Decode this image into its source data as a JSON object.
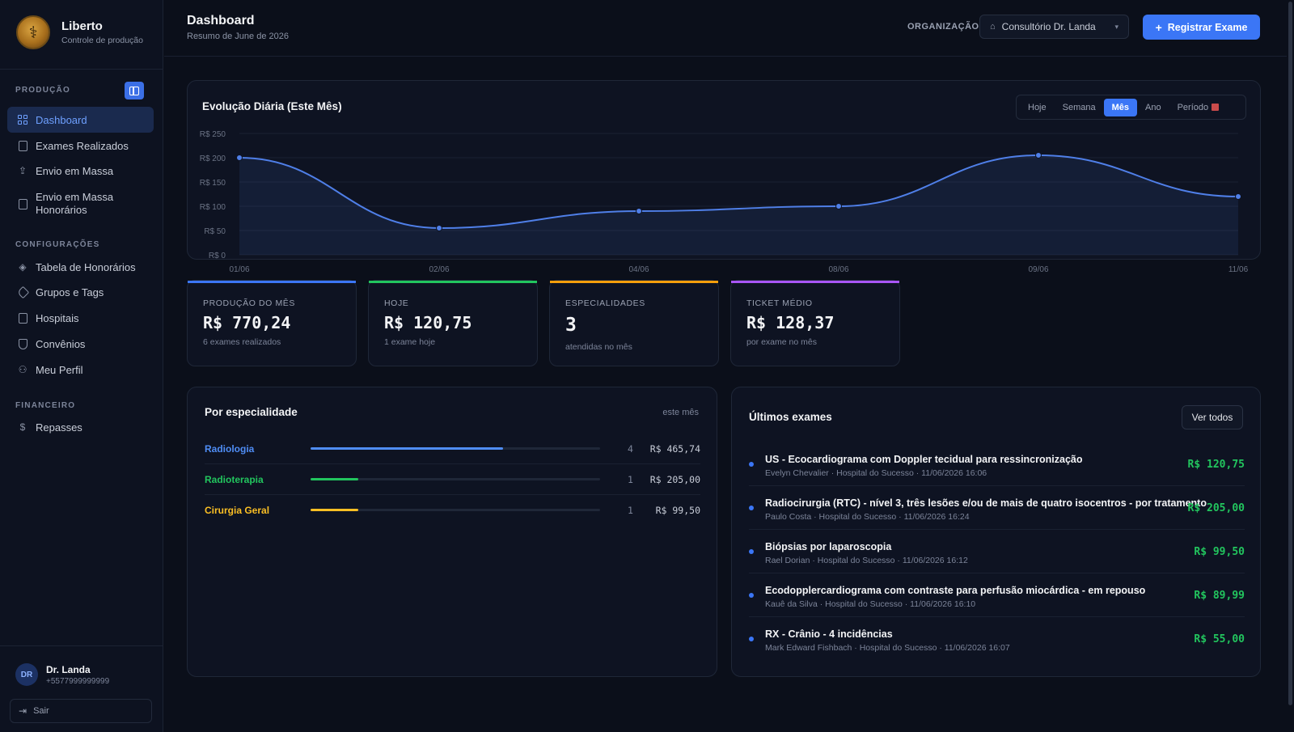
{
  "sidebar": {
    "brand": {
      "name": "Liberto",
      "subtitle": "Controle de produção"
    },
    "sections": [
      {
        "label": "PRODUÇÃO"
      },
      {
        "label": "CONFIGURAÇÕES"
      },
      {
        "label": "FINANCEIRO"
      }
    ],
    "items": [
      {
        "label": "Dashboard",
        "icon": "grid-icon",
        "active": true
      },
      {
        "label": "Exames Realizados",
        "icon": "clipboard-icon"
      },
      {
        "label": "Envio em Massa",
        "icon": "upload-icon"
      },
      {
        "label": "Envio em Massa Honorários",
        "icon": "file-upload-icon"
      },
      {
        "label": "Tabela de Honorários",
        "icon": "layers-icon"
      },
      {
        "label": "Grupos e Tags",
        "icon": "tag-icon"
      },
      {
        "label": "Hospitais",
        "icon": "building-icon"
      },
      {
        "label": "Convênios",
        "icon": "shield-icon"
      },
      {
        "label": "Meu Perfil",
        "icon": "user-icon"
      },
      {
        "label": "Repasses",
        "icon": "dollar-icon"
      }
    ],
    "user": {
      "initials": "DR",
      "name": "Dr. Landa",
      "phone": "+5577999999999"
    },
    "logout_label": "Sair"
  },
  "header": {
    "title": "Dashboard",
    "subtitle": "Resumo de June de 2026",
    "org_label": "ORGANIZAÇÃO:",
    "org_value": "Consultório Dr. Landa",
    "primary_button": "Registrar Exame"
  },
  "chart": {
    "title": "Evolução Diária (Este Mês)",
    "tabs": [
      {
        "label": "Hoje"
      },
      {
        "label": "Semana"
      },
      {
        "label": "Mês",
        "active": true
      },
      {
        "label": "Ano"
      },
      {
        "label": "Período"
      }
    ]
  },
  "chart_data": {
    "type": "area",
    "title": "Evolução Diária (Este Mês)",
    "x": [
      "01/06",
      "02/06",
      "04/06",
      "08/06",
      "09/06",
      "11/06"
    ],
    "y_ticks": [
      "R$ 250",
      "R$ 200",
      "R$ 150",
      "R$ 100",
      "R$ 50",
      "R$ 0"
    ],
    "ylim": [
      0,
      250
    ],
    "series": [
      {
        "values": [
          200,
          55,
          90,
          100,
          205,
          120
        ]
      }
    ],
    "grid": true,
    "accent": "#4f7fe8"
  },
  "stats": [
    {
      "label": "PRODUÇÃO DO MÊS",
      "value": "R$ 770,24",
      "note": "6 exames realizados",
      "color": "#3b76f6"
    },
    {
      "label": "HOJE",
      "value": "R$ 120,75",
      "note": "1 exame hoje",
      "color": "#22c55e"
    },
    {
      "label": "ESPECIALIDADES",
      "value": "3",
      "note": "atendidas no mês",
      "color": "#f59e0b"
    },
    {
      "label": "TICKET MÉDIO",
      "value": "R$ 128,37",
      "note": "por exame no mês",
      "color": "#a855f7"
    }
  ],
  "specialties": {
    "title": "Por especialidade",
    "period": "este mês",
    "rows": [
      {
        "name": "Radiologia",
        "count": "4",
        "amount": "R$ 465,74",
        "share": 0.665,
        "color": "#4f8df5"
      },
      {
        "name": "Radioterapia",
        "count": "1",
        "amount": "R$ 205,00",
        "share": 0.165,
        "color": "#22c55e"
      },
      {
        "name": "Cirurgia Geral",
        "count": "1",
        "amount": "R$ 99,50",
        "share": 0.165,
        "color": "#fbbf24"
      }
    ]
  },
  "exams": {
    "title": "Últimos exames",
    "view_all": "Ver todos",
    "rows": [
      {
        "name": "US - Ecocardiograma com Doppler tecidual para ressincronização",
        "meta": "Evelyn Chevalier · Hospital do Sucesso · 11/06/2026 16:06",
        "amount": "R$ 120,75"
      },
      {
        "name": "Radiocirurgia (RTC) - nível 3, três lesões e/ou de mais de quatro isocentros - por tratamento",
        "meta": "Paulo Costa · Hospital do Sucesso · 11/06/2026 16:24",
        "amount": "R$ 205,00"
      },
      {
        "name": "Biópsias por laparoscopia",
        "meta": "Rael Dorian · Hospital do Sucesso · 11/06/2026 16:12",
        "amount": "R$ 99,50"
      },
      {
        "name": "Ecodopplercardiograma com contraste para perfusão miocárdica - em repouso",
        "meta": "Kauê da Silva · Hospital do Sucesso · 11/06/2026 16:10",
        "amount": "R$ 89,99"
      },
      {
        "name": "RX - Crânio - 4 incidências",
        "meta": "Mark Edward Fishbach · Hospital do Sucesso · 11/06/2026 16:07",
        "amount": "R$ 55,00"
      }
    ]
  }
}
